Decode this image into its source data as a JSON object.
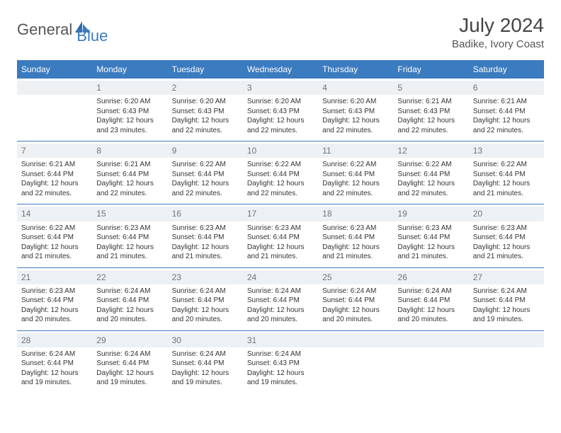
{
  "logo": {
    "word1": "General",
    "word2": "Blue"
  },
  "header": {
    "month_title": "July 2024",
    "location": "Badike, Ivory Coast"
  },
  "colors": {
    "header_bar": "#3b7bbf",
    "grid_line": "#3b7bbf",
    "daynum_bg": "#eef1f3",
    "daynum_text": "#6a747c",
    "body_text": "#333333",
    "background": "#ffffff"
  },
  "day_labels": [
    "Sunday",
    "Monday",
    "Tuesday",
    "Wednesday",
    "Thursday",
    "Friday",
    "Saturday"
  ],
  "weeks": [
    [
      {
        "day": "",
        "sunrise": "",
        "sunset": "",
        "daylight": ""
      },
      {
        "day": "1",
        "sunrise": "Sunrise: 6:20 AM",
        "sunset": "Sunset: 6:43 PM",
        "daylight": "Daylight: 12 hours and 23 minutes."
      },
      {
        "day": "2",
        "sunrise": "Sunrise: 6:20 AM",
        "sunset": "Sunset: 6:43 PM",
        "daylight": "Daylight: 12 hours and 22 minutes."
      },
      {
        "day": "3",
        "sunrise": "Sunrise: 6:20 AM",
        "sunset": "Sunset: 6:43 PM",
        "daylight": "Daylight: 12 hours and 22 minutes."
      },
      {
        "day": "4",
        "sunrise": "Sunrise: 6:20 AM",
        "sunset": "Sunset: 6:43 PM",
        "daylight": "Daylight: 12 hours and 22 minutes."
      },
      {
        "day": "5",
        "sunrise": "Sunrise: 6:21 AM",
        "sunset": "Sunset: 6:43 PM",
        "daylight": "Daylight: 12 hours and 22 minutes."
      },
      {
        "day": "6",
        "sunrise": "Sunrise: 6:21 AM",
        "sunset": "Sunset: 6:44 PM",
        "daylight": "Daylight: 12 hours and 22 minutes."
      }
    ],
    [
      {
        "day": "7",
        "sunrise": "Sunrise: 6:21 AM",
        "sunset": "Sunset: 6:44 PM",
        "daylight": "Daylight: 12 hours and 22 minutes."
      },
      {
        "day": "8",
        "sunrise": "Sunrise: 6:21 AM",
        "sunset": "Sunset: 6:44 PM",
        "daylight": "Daylight: 12 hours and 22 minutes."
      },
      {
        "day": "9",
        "sunrise": "Sunrise: 6:22 AM",
        "sunset": "Sunset: 6:44 PM",
        "daylight": "Daylight: 12 hours and 22 minutes."
      },
      {
        "day": "10",
        "sunrise": "Sunrise: 6:22 AM",
        "sunset": "Sunset: 6:44 PM",
        "daylight": "Daylight: 12 hours and 22 minutes."
      },
      {
        "day": "11",
        "sunrise": "Sunrise: 6:22 AM",
        "sunset": "Sunset: 6:44 PM",
        "daylight": "Daylight: 12 hours and 22 minutes."
      },
      {
        "day": "12",
        "sunrise": "Sunrise: 6:22 AM",
        "sunset": "Sunset: 6:44 PM",
        "daylight": "Daylight: 12 hours and 22 minutes."
      },
      {
        "day": "13",
        "sunrise": "Sunrise: 6:22 AM",
        "sunset": "Sunset: 6:44 PM",
        "daylight": "Daylight: 12 hours and 21 minutes."
      }
    ],
    [
      {
        "day": "14",
        "sunrise": "Sunrise: 6:22 AM",
        "sunset": "Sunset: 6:44 PM",
        "daylight": "Daylight: 12 hours and 21 minutes."
      },
      {
        "day": "15",
        "sunrise": "Sunrise: 6:23 AM",
        "sunset": "Sunset: 6:44 PM",
        "daylight": "Daylight: 12 hours and 21 minutes."
      },
      {
        "day": "16",
        "sunrise": "Sunrise: 6:23 AM",
        "sunset": "Sunset: 6:44 PM",
        "daylight": "Daylight: 12 hours and 21 minutes."
      },
      {
        "day": "17",
        "sunrise": "Sunrise: 6:23 AM",
        "sunset": "Sunset: 6:44 PM",
        "daylight": "Daylight: 12 hours and 21 minutes."
      },
      {
        "day": "18",
        "sunrise": "Sunrise: 6:23 AM",
        "sunset": "Sunset: 6:44 PM",
        "daylight": "Daylight: 12 hours and 21 minutes."
      },
      {
        "day": "19",
        "sunrise": "Sunrise: 6:23 AM",
        "sunset": "Sunset: 6:44 PM",
        "daylight": "Daylight: 12 hours and 21 minutes."
      },
      {
        "day": "20",
        "sunrise": "Sunrise: 6:23 AM",
        "sunset": "Sunset: 6:44 PM",
        "daylight": "Daylight: 12 hours and 21 minutes."
      }
    ],
    [
      {
        "day": "21",
        "sunrise": "Sunrise: 6:23 AM",
        "sunset": "Sunset: 6:44 PM",
        "daylight": "Daylight: 12 hours and 20 minutes."
      },
      {
        "day": "22",
        "sunrise": "Sunrise: 6:24 AM",
        "sunset": "Sunset: 6:44 PM",
        "daylight": "Daylight: 12 hours and 20 minutes."
      },
      {
        "day": "23",
        "sunrise": "Sunrise: 6:24 AM",
        "sunset": "Sunset: 6:44 PM",
        "daylight": "Daylight: 12 hours and 20 minutes."
      },
      {
        "day": "24",
        "sunrise": "Sunrise: 6:24 AM",
        "sunset": "Sunset: 6:44 PM",
        "daylight": "Daylight: 12 hours and 20 minutes."
      },
      {
        "day": "25",
        "sunrise": "Sunrise: 6:24 AM",
        "sunset": "Sunset: 6:44 PM",
        "daylight": "Daylight: 12 hours and 20 minutes."
      },
      {
        "day": "26",
        "sunrise": "Sunrise: 6:24 AM",
        "sunset": "Sunset: 6:44 PM",
        "daylight": "Daylight: 12 hours and 20 minutes."
      },
      {
        "day": "27",
        "sunrise": "Sunrise: 6:24 AM",
        "sunset": "Sunset: 6:44 PM",
        "daylight": "Daylight: 12 hours and 19 minutes."
      }
    ],
    [
      {
        "day": "28",
        "sunrise": "Sunrise: 6:24 AM",
        "sunset": "Sunset: 6:44 PM",
        "daylight": "Daylight: 12 hours and 19 minutes."
      },
      {
        "day": "29",
        "sunrise": "Sunrise: 6:24 AM",
        "sunset": "Sunset: 6:44 PM",
        "daylight": "Daylight: 12 hours and 19 minutes."
      },
      {
        "day": "30",
        "sunrise": "Sunrise: 6:24 AM",
        "sunset": "Sunset: 6:44 PM",
        "daylight": "Daylight: 12 hours and 19 minutes."
      },
      {
        "day": "31",
        "sunrise": "Sunrise: 6:24 AM",
        "sunset": "Sunset: 6:43 PM",
        "daylight": "Daylight: 12 hours and 19 minutes."
      },
      {
        "day": "",
        "sunrise": "",
        "sunset": "",
        "daylight": ""
      },
      {
        "day": "",
        "sunrise": "",
        "sunset": "",
        "daylight": ""
      },
      {
        "day": "",
        "sunrise": "",
        "sunset": "",
        "daylight": ""
      }
    ]
  ]
}
